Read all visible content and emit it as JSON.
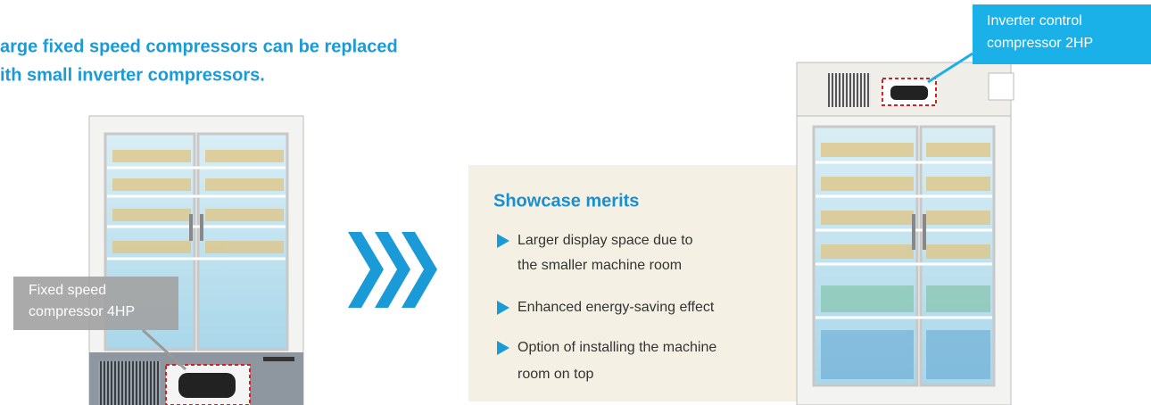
{
  "heading": {
    "lines": [
      "arge fixed speed compressors can be replaced",
      "ith small inverter compressors."
    ]
  },
  "left_showcase": {
    "callout": [
      "Fixed speed",
      "compressor 4HP"
    ]
  },
  "right_showcase": {
    "callout": [
      "Inverter control",
      "compressor 2HP"
    ]
  },
  "merits": {
    "title": "Showcase merits",
    "items": [
      [
        "Larger display space due to",
        "the smaller machine room"
      ],
      [
        "Enhanced energy-saving effect"
      ],
      [
        "Option of installing the machine",
        "room on top"
      ]
    ]
  }
}
